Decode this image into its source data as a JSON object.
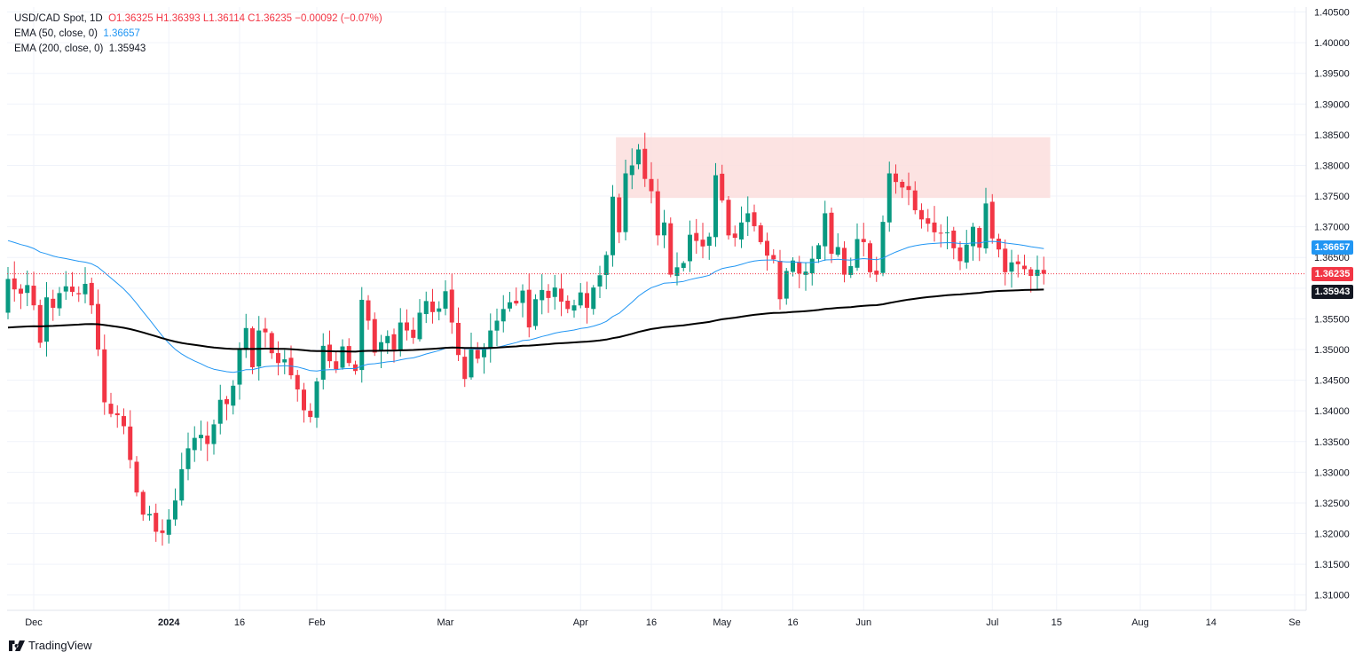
{
  "legend": {
    "symbol": "USD/CAD Spot, 1D",
    "ohlc": "O1.36325  H1.36393  L1.36114  C1.36235  −0.00092 (−0.07%)",
    "ema50_label": "EMA (50, close, 0)",
    "ema50_value": "1.36657",
    "ema200_label": "EMA (200, close, 0)",
    "ema200_value": "1.35943"
  },
  "brand": {
    "name": "TradingView",
    "icon": "tradingview-logo-icon"
  },
  "price_tags": {
    "ema50": "1.36657",
    "last": "1.36235",
    "ema200": "1.35943"
  },
  "colors": {
    "up": "#089981",
    "down": "#f23645",
    "ema50": "#2196f3",
    "ema200": "#000000",
    "zone": "#fcdedd",
    "grid": "#f0f3fa",
    "last_line": "#f23645"
  },
  "chart_data": {
    "type": "candlestick",
    "title": "USD/CAD Spot, 1D",
    "ylim": [
      1.3075,
      1.4058
    ],
    "yticks": [
      "1.40500",
      "1.40000",
      "1.39500",
      "1.39000",
      "1.38500",
      "1.38000",
      "1.37500",
      "1.37000",
      "1.36500",
      "1.36000",
      "1.35500",
      "1.35000",
      "1.34500",
      "1.34000",
      "1.33500",
      "1.33000",
      "1.32500",
      "1.32000",
      "1.31500",
      "1.31000"
    ],
    "x_ticks": [
      {
        "label": "Dec",
        "i": 4,
        "bold": false
      },
      {
        "label": "2024",
        "i": 25,
        "bold": true
      },
      {
        "label": "16",
        "i": 36,
        "bold": false
      },
      {
        "label": "Feb",
        "i": 48,
        "bold": false
      },
      {
        "label": "Mar",
        "i": 68,
        "bold": false
      },
      {
        "label": "Apr",
        "i": 89,
        "bold": false
      },
      {
        "label": "16",
        "i": 100,
        "bold": false
      },
      {
        "label": "May",
        "i": 111,
        "bold": false
      },
      {
        "label": "16",
        "i": 122,
        "bold": false
      },
      {
        "label": "Jun",
        "i": 133,
        "bold": false
      },
      {
        "label": "Jul",
        "i": 153,
        "bold": false
      },
      {
        "label": "15",
        "i": 163,
        "bold": false
      },
      {
        "label": "Aug",
        "i": 176,
        "bold": false
      },
      {
        "label": "14",
        "i": 187,
        "bold": false
      },
      {
        "label": "Se",
        "i": 200,
        "bold": false
      }
    ],
    "resistance_zone": {
      "i_start": 94.5,
      "i_end": 162,
      "low": 1.3747,
      "high": 1.3846
    },
    "last_price": 1.36235,
    "closes": [
      1.3615,
      1.3598,
      1.3591,
      1.3605,
      1.3572,
      1.3511,
      1.3585,
      1.3568,
      1.3592,
      1.3603,
      1.3594,
      1.359,
      1.3607,
      1.3572,
      1.35,
      1.3414,
      1.3395,
      1.3393,
      1.3375,
      1.332,
      1.3267,
      1.3231,
      1.3232,
      1.3203,
      1.3201,
      1.3223,
      1.3254,
      1.3305,
      1.3339,
      1.3356,
      1.3361,
      1.3346,
      1.3378,
      1.3418,
      1.3411,
      1.3441,
      1.3501,
      1.3535,
      1.3471,
      1.3531,
      1.3528,
      1.3494,
      1.3478,
      1.3484,
      1.3458,
      1.3435,
      1.3401,
      1.339,
      1.3448,
      1.3506,
      1.3481,
      1.3468,
      1.3505,
      1.3478,
      1.3465,
      1.3581,
      1.3547,
      1.3495,
      1.3512,
      1.3522,
      1.35,
      1.3544,
      1.3531,
      1.3519,
      1.356,
      1.3579,
      1.3561,
      1.3567,
      1.3595,
      1.3544,
      1.3491,
      1.3452,
      1.35,
      1.3485,
      1.35,
      1.3531,
      1.3547,
      1.3566,
      1.3577,
      1.3575,
      1.3596,
      1.3536,
      1.3582,
      1.3597,
      1.3584,
      1.3601,
      1.3578,
      1.3566,
      1.3572,
      1.3593,
      1.3568,
      1.3601,
      1.3621,
      1.3654,
      1.3749,
      1.3691,
      1.3787,
      1.38,
      1.3826,
      1.3778,
      1.3758,
      1.3686,
      1.3707,
      1.3622,
      1.3634,
      1.3641,
      1.3687,
      1.3677,
      1.3668,
      1.3684,
      1.3784,
      1.3743,
      1.3686,
      1.3682,
      1.3707,
      1.3722,
      1.3701,
      1.3675,
      1.3653,
      1.3647,
      1.3582,
      1.3628,
      1.3645,
      1.3624,
      1.3627,
      1.3648,
      1.367,
      1.3722,
      1.3656,
      1.3667,
      1.3622,
      1.3636,
      1.368,
      1.3675,
      1.3626,
      1.3622,
      1.3708,
      1.3787,
      1.3773,
      1.3764,
      1.376,
      1.3727,
      1.3712,
      1.3705,
      1.3691,
      1.369,
      1.3691,
      1.3665,
      1.3644,
      1.3671,
      1.37,
      1.3666,
      1.3738,
      1.3681,
      1.3663,
      1.3626,
      1.3642,
      1.3639,
      1.3631,
      1.362,
      1.363,
      1.36235
    ]
  }
}
